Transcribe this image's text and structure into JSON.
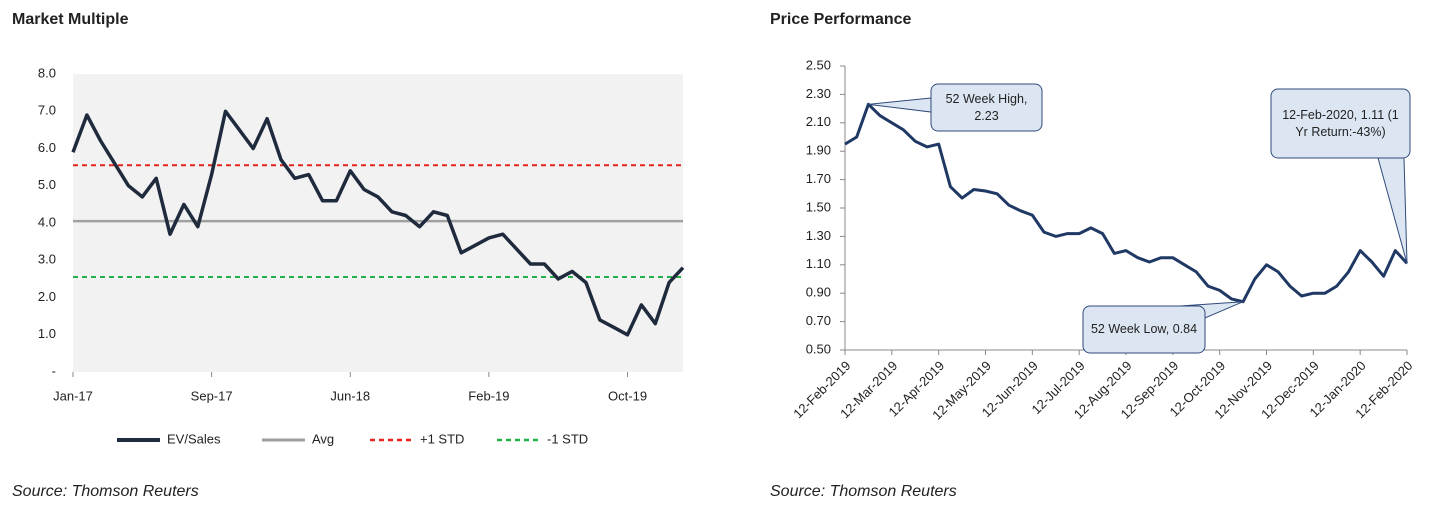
{
  "chart_data": [
    {
      "type": "line",
      "title": "Market Multiple",
      "source": "Source: Thomson Reuters",
      "categories": [
        "Jan-17",
        null,
        null,
        null,
        null,
        null,
        null,
        null,
        null,
        null,
        "Sep-17",
        null,
        null,
        null,
        null,
        null,
        null,
        null,
        null,
        null,
        "Jun-18",
        null,
        null,
        null,
        null,
        null,
        null,
        null,
        null,
        null,
        "Feb-19",
        null,
        null,
        null,
        null,
        null,
        null,
        null,
        null,
        null,
        "Oct-19",
        null,
        null,
        null,
        null
      ],
      "series": [
        {
          "name": "EV/Sales",
          "color": "#1f2a3c",
          "values": [
            5.9,
            6.9,
            6.2,
            5.6,
            5.0,
            4.7,
            5.2,
            3.7,
            4.5,
            3.9,
            5.3,
            7.0,
            6.5,
            6.0,
            6.8,
            5.7,
            5.2,
            5.3,
            4.6,
            4.6,
            5.4,
            4.9,
            4.7,
            4.3,
            4.2,
            3.9,
            4.3,
            4.2,
            3.2,
            3.4,
            3.6,
            3.7,
            3.3,
            2.9,
            2.9,
            2.5,
            2.7,
            2.4,
            1.4,
            1.2,
            1.0,
            1.8,
            1.3,
            2.4,
            2.8
          ]
        },
        {
          "name": "Avg",
          "color": "#a0a0a0",
          "values": [
            4.05,
            4.05,
            4.05,
            4.05,
            4.05,
            4.05,
            4.05,
            4.05,
            4.05,
            4.05,
            4.05,
            4.05,
            4.05,
            4.05,
            4.05,
            4.05,
            4.05,
            4.05,
            4.05,
            4.05,
            4.05,
            4.05,
            4.05,
            4.05,
            4.05,
            4.05,
            4.05,
            4.05,
            4.05,
            4.05,
            4.05,
            4.05,
            4.05,
            4.05,
            4.05,
            4.05,
            4.05,
            4.05,
            4.05,
            4.05,
            4.05,
            4.05,
            4.05,
            4.05,
            4.05
          ]
        },
        {
          "name": "+1 STD",
          "color": "#e8231e",
          "dash": true,
          "values": [
            5.55,
            5.55,
            5.55,
            5.55,
            5.55,
            5.55,
            5.55,
            5.55,
            5.55,
            5.55,
            5.55,
            5.55,
            5.55,
            5.55,
            5.55,
            5.55,
            5.55,
            5.55,
            5.55,
            5.55,
            5.55,
            5.55,
            5.55,
            5.55,
            5.55,
            5.55,
            5.55,
            5.55,
            5.55,
            5.55,
            5.55,
            5.55,
            5.55,
            5.55,
            5.55,
            5.55,
            5.55,
            5.55,
            5.55,
            5.55,
            5.55,
            5.55,
            5.55,
            5.55,
            5.55
          ]
        },
        {
          "name": "-1 STD",
          "color": "#22b04a",
          "dash": true,
          "values": [
            2.55,
            2.55,
            2.55,
            2.55,
            2.55,
            2.55,
            2.55,
            2.55,
            2.55,
            2.55,
            2.55,
            2.55,
            2.55,
            2.55,
            2.55,
            2.55,
            2.55,
            2.55,
            2.55,
            2.55,
            2.55,
            2.55,
            2.55,
            2.55,
            2.55,
            2.55,
            2.55,
            2.55,
            2.55,
            2.55,
            2.55,
            2.55,
            2.55,
            2.55,
            2.55,
            2.55,
            2.55,
            2.55,
            2.55,
            2.55,
            2.55,
            2.55,
            2.55,
            2.55,
            2.55
          ]
        }
      ],
      "ylim": [
        0,
        8
      ],
      "yticks": [
        {
          "value": 0,
          "label": "-"
        },
        {
          "value": 1,
          "label": "1.0"
        },
        {
          "value": 2,
          "label": "2.0"
        },
        {
          "value": 3,
          "label": "3.0"
        },
        {
          "value": 4,
          "label": "4.0"
        },
        {
          "value": 5,
          "label": "5.0"
        },
        {
          "value": 6,
          "label": "6.0"
        },
        {
          "value": 7,
          "label": "7.0"
        },
        {
          "value": 8,
          "label": "8.0"
        }
      ],
      "legend": "bottom",
      "grid": false
    },
    {
      "type": "line",
      "title": "Price Performance",
      "source": "Source: Thomson Reuters",
      "categories": [
        "12-Feb-2019",
        null,
        null,
        null,
        "12-Mar-2019",
        null,
        null,
        null,
        "12-Apr-2019",
        null,
        null,
        null,
        "12-May-2019",
        null,
        null,
        null,
        "12-Jun-2019",
        null,
        null,
        null,
        "12-Jul-2019",
        null,
        null,
        null,
        "12-Aug-2019",
        null,
        null,
        null,
        "12-Sep-2019",
        null,
        null,
        null,
        "12-Oct-2019",
        null,
        null,
        null,
        "12-Nov-2019",
        null,
        null,
        null,
        "12-Dec-2019",
        null,
        null,
        null,
        "12-Jan-2020",
        null,
        null,
        null,
        "12-Feb-2020"
      ],
      "color": "#1f3864",
      "values": [
        1.95,
        2.0,
        2.23,
        2.15,
        2.1,
        2.05,
        1.97,
        1.93,
        1.95,
        1.65,
        1.57,
        1.63,
        1.62,
        1.6,
        1.52,
        1.48,
        1.45,
        1.33,
        1.3,
        1.32,
        1.32,
        1.36,
        1.32,
        1.18,
        1.2,
        1.15,
        1.12,
        1.15,
        1.15,
        1.1,
        1.05,
        0.95,
        0.92,
        0.86,
        0.84,
        1.0,
        1.1,
        1.05,
        0.95,
        0.88,
        0.9,
        0.9,
        0.95,
        1.05,
        1.2,
        1.12,
        1.02,
        1.2,
        1.11
      ],
      "ylim": [
        0.5,
        2.5
      ],
      "yticks": [
        {
          "value": 0.5,
          "label": "0.50"
        },
        {
          "value": 0.7,
          "label": "0.70"
        },
        {
          "value": 0.9,
          "label": "0.90"
        },
        {
          "value": 1.1,
          "label": "1.10"
        },
        {
          "value": 1.3,
          "label": "1.30"
        },
        {
          "value": 1.5,
          "label": "1.50"
        },
        {
          "value": 1.7,
          "label": "1.70"
        },
        {
          "value": 1.9,
          "label": "1.90"
        },
        {
          "value": 2.1,
          "label": "2.10"
        },
        {
          "value": 2.3,
          "label": "2.30"
        },
        {
          "value": 2.5,
          "label": "2.50"
        }
      ],
      "annotations": [
        "52 Week High, 2.23",
        "52 Week Low, 0.84",
        "12-Feb-2020, 1.11 (1 Yr Return:-43%)"
      ],
      "grid": false
    }
  ]
}
